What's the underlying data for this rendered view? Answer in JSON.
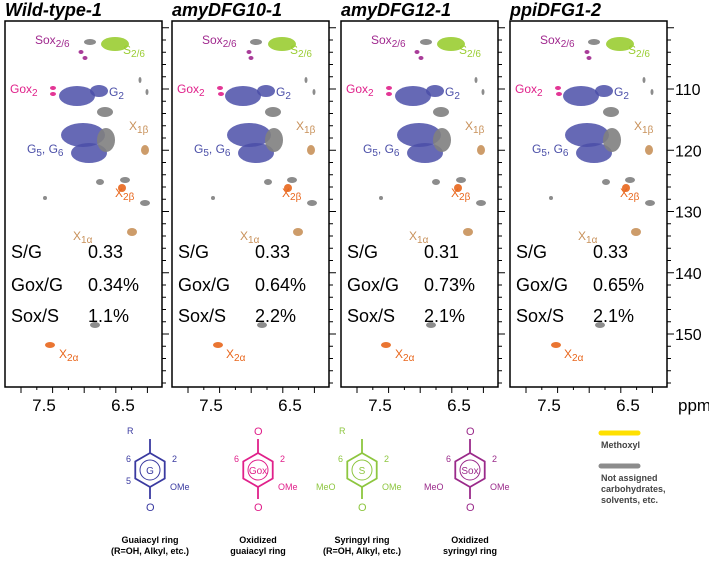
{
  "panels": [
    {
      "title": "Wild-type-1",
      "stats": [
        [
          "S/G",
          "0.33"
        ],
        [
          "Gox/G",
          "0.34%"
        ],
        [
          "Sox/S",
          "1.1%"
        ]
      ]
    },
    {
      "title": "amyDFG10-1",
      "stats": [
        [
          "S/G",
          "0.33"
        ],
        [
          "Gox/G",
          "0.64%"
        ],
        [
          "Sox/S",
          "2.2%"
        ]
      ]
    },
    {
      "title": "amyDFG12-1",
      "stats": [
        [
          "S/G",
          "0.31"
        ],
        [
          "Gox/G",
          "0.73%"
        ],
        [
          "Sox/S",
          "2.1%"
        ]
      ]
    },
    {
      "title": "ppiDFG1-2",
      "stats": [
        [
          "S/G",
          "0.33"
        ],
        [
          "Gox/G",
          "0.65%"
        ],
        [
          "Sox/S",
          "2.1%"
        ]
      ]
    }
  ],
  "peak_labels": [
    [
      "Sox",
      "2/6"
    ],
    [
      "S",
      "2/6"
    ],
    [
      "Gox",
      "2"
    ],
    [
      "G",
      "2"
    ],
    [
      "G",
      "5",
      ", G",
      "6"
    ],
    [
      "X",
      "1β"
    ],
    [
      "X",
      "2β"
    ],
    [
      "X",
      "1α"
    ],
    [
      "X",
      "2α"
    ]
  ],
  "x_ticks": [
    "7.5",
    "6.5"
  ],
  "x_unit": "ppm",
  "y_ticks": [
    "110",
    "120",
    "130",
    "140",
    "150"
  ],
  "structures": [
    {
      "ring": "G",
      "substituents": [
        "R",
        "6",
        "2",
        "5",
        "OMe"
      ],
      "caption": [
        "Guaiacyl ring",
        "(R=OH, Alkyl, etc.)"
      ]
    },
    {
      "ring": "Gox",
      "substituents": [
        "6",
        "2",
        "OMe"
      ],
      "caption": [
        "Oxidized",
        "guaiacyl ring"
      ]
    },
    {
      "ring": "S",
      "substituents": [
        "R",
        "6",
        "2",
        "MeO",
        "OMe"
      ],
      "caption": [
        "Syringyl ring",
        "(R=OH, Alkyl, etc.)"
      ]
    },
    {
      "ring": "Sox",
      "substituents": [
        "6",
        "2",
        "MeO",
        "OMe"
      ],
      "caption": [
        "Oxidized",
        "syringyl ring"
      ]
    }
  ],
  "legend": [
    {
      "label": [
        "Methoxyl"
      ]
    },
    {
      "label": [
        "Not assigned",
        "carbohydrates,",
        "solvents, etc."
      ]
    }
  ]
}
